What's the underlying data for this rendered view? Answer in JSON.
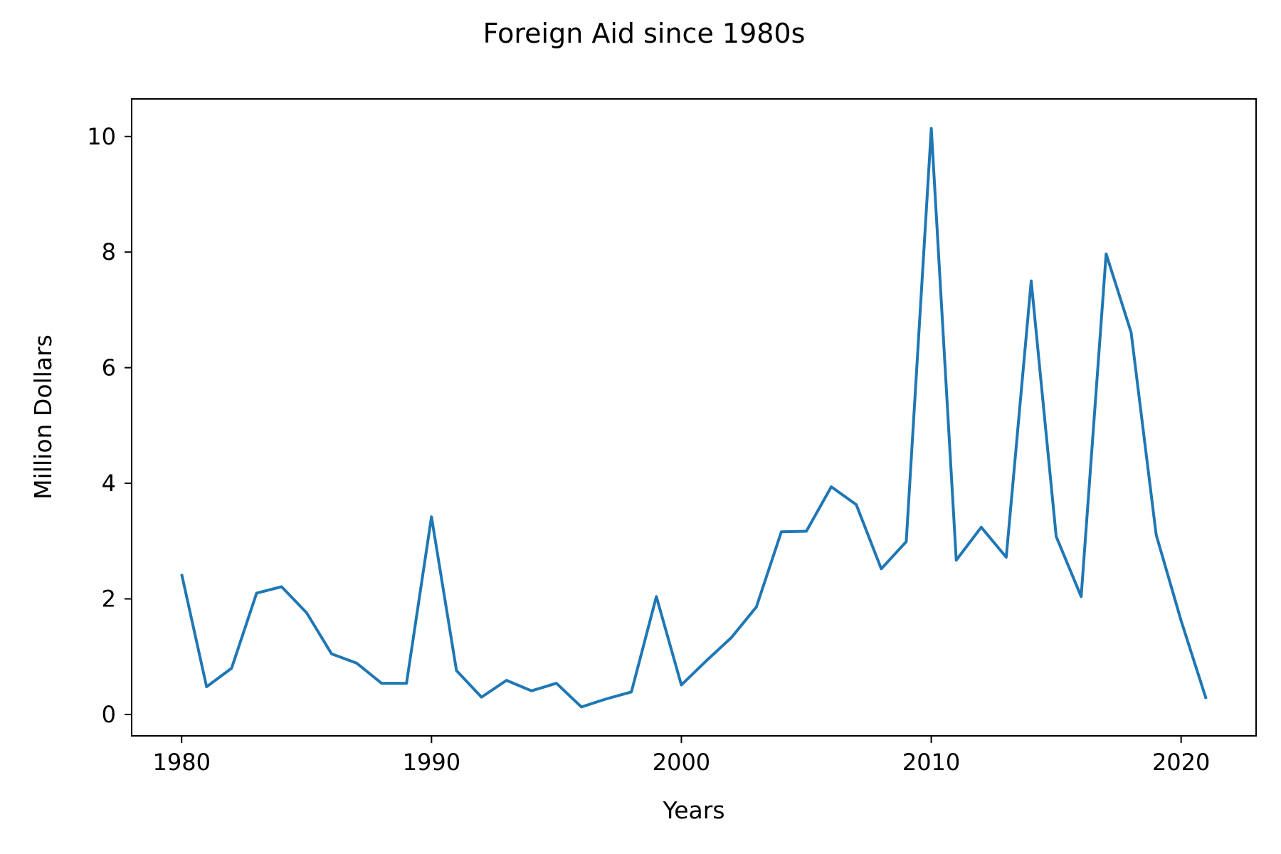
{
  "chart_data": {
    "type": "line",
    "title": "Foreign Aid since 1980s",
    "xlabel": "Years",
    "ylabel": "Million Dollars",
    "xlim": [
      1978,
      2023
    ],
    "ylim": [
      -0.37,
      10.65
    ],
    "x_ticks": [
      1980,
      1990,
      2000,
      2010,
      2020
    ],
    "y_ticks": [
      0,
      2,
      4,
      6,
      8,
      10
    ],
    "grid": false,
    "legend": "none",
    "line_color": "#1f77b4",
    "x": [
      1980,
      1981,
      1982,
      1983,
      1984,
      1985,
      1986,
      1987,
      1988,
      1989,
      1990,
      1991,
      1992,
      1993,
      1994,
      1995,
      1996,
      1997,
      1998,
      1999,
      2000,
      2001,
      2002,
      2003,
      2004,
      2005,
      2006,
      2007,
      2008,
      2009,
      2010,
      2011,
      2012,
      2013,
      2014,
      2015,
      2016,
      2017,
      2018,
      2019,
      2020,
      2021
    ],
    "series": [
      {
        "values": [
          2.43,
          0.48,
          0.8,
          2.1,
          2.21,
          1.76,
          1.05,
          0.89,
          0.54,
          0.54,
          3.42,
          0.76,
          0.3,
          0.59,
          0.41,
          0.54,
          0.13,
          0.27,
          0.39,
          2.04,
          0.51,
          0.93,
          1.33,
          1.86,
          3.16,
          3.17,
          3.94,
          3.63,
          2.52,
          2.99,
          10.14,
          2.67,
          3.24,
          2.72,
          7.5,
          3.08,
          2.04,
          7.97,
          6.61,
          3.11,
          1.62,
          0.27
        ]
      }
    ]
  }
}
